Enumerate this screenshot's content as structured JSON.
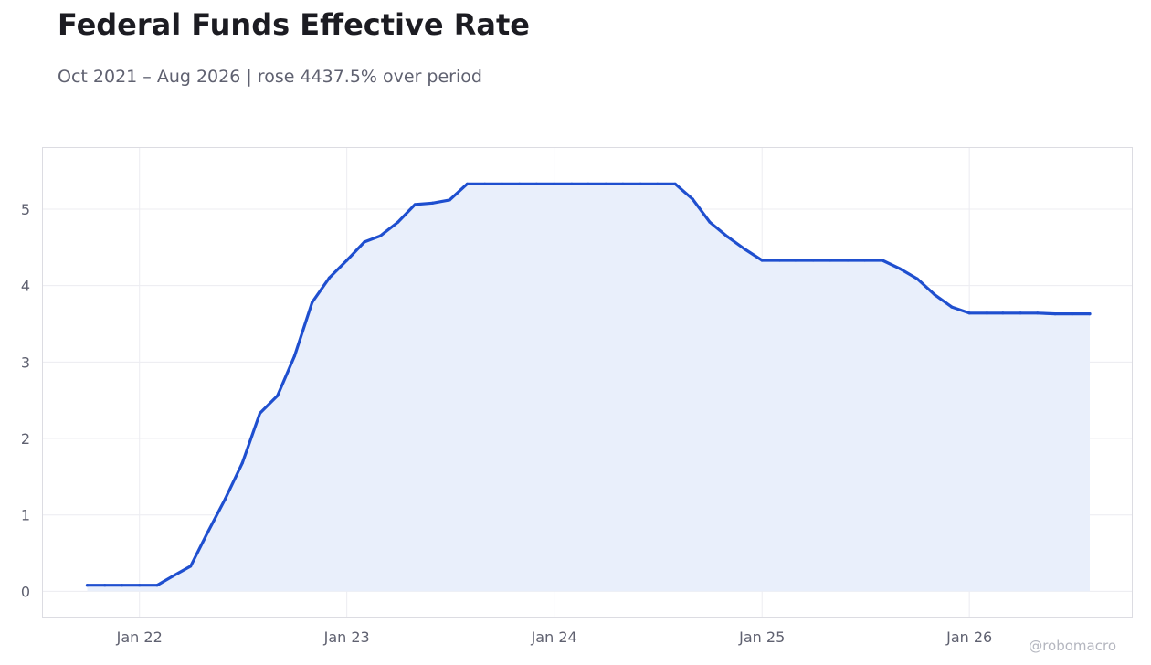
{
  "header": {
    "title": "Federal Funds Effective Rate",
    "subtitle": "Oct 2021 – Aug 2026 | rose 4437.5% over period"
  },
  "watermark": "@robomacro",
  "colors": {
    "line": "#1f4fcf",
    "area": "#e9effb",
    "grid": "#ececf1",
    "axis_text": "#5f6170"
  },
  "chart_data": {
    "type": "area",
    "title": "Federal Funds Effective Rate",
    "xlabel": "",
    "ylabel": "",
    "ylim": [
      -0.33,
      5.8
    ],
    "xlim": [
      "2021-07-15",
      "2026-10-14"
    ],
    "grid": true,
    "legend": "none",
    "x_ticks": [
      {
        "date": "2022-01-01",
        "label": "Jan 22"
      },
      {
        "date": "2023-01-01",
        "label": "Jan 23"
      },
      {
        "date": "2024-01-01",
        "label": "Jan 24"
      },
      {
        "date": "2025-01-01",
        "label": "Jan 25"
      },
      {
        "date": "2026-01-01",
        "label": "Jan 26"
      }
    ],
    "y_ticks": [
      0,
      1,
      2,
      3,
      4,
      5
    ],
    "series": [
      {
        "x": [
          "2021-10-01",
          "2021-11-01",
          "2021-12-01",
          "2022-01-01",
          "2022-02-01",
          "2022-03-01",
          "2022-04-01",
          "2022-05-01",
          "2022-06-01",
          "2022-07-01",
          "2022-08-01",
          "2022-09-01",
          "2022-10-01",
          "2022-11-01",
          "2022-12-01",
          "2023-01-01",
          "2023-02-01",
          "2023-03-01",
          "2023-04-01",
          "2023-05-01",
          "2023-06-01",
          "2023-07-01",
          "2023-08-01",
          "2023-09-01",
          "2023-10-01",
          "2023-11-01",
          "2023-12-01",
          "2024-01-01",
          "2024-02-01",
          "2024-03-01",
          "2024-04-01",
          "2024-05-01",
          "2024-06-01",
          "2024-07-01",
          "2024-08-01",
          "2024-09-01",
          "2024-10-01",
          "2024-11-01",
          "2024-12-01",
          "2025-01-01",
          "2025-02-01",
          "2025-03-01",
          "2025-04-01",
          "2025-05-01",
          "2025-06-01",
          "2025-07-01",
          "2025-08-01",
          "2025-09-01",
          "2025-10-01",
          "2025-11-01",
          "2025-12-01",
          "2026-01-01",
          "2026-02-01",
          "2026-03-01",
          "2026-04-01",
          "2026-05-01",
          "2026-06-01",
          "2026-07-01",
          "2026-08-01"
        ],
        "values": [
          0.08,
          0.08,
          0.08,
          0.08,
          0.08,
          0.2,
          0.33,
          0.77,
          1.21,
          1.68,
          2.33,
          2.56,
          3.08,
          3.78,
          4.1,
          4.33,
          4.57,
          4.65,
          4.83,
          5.06,
          5.08,
          5.12,
          5.33,
          5.33,
          5.33,
          5.33,
          5.33,
          5.33,
          5.33,
          5.33,
          5.33,
          5.33,
          5.33,
          5.33,
          5.33,
          5.13,
          4.83,
          4.64,
          4.48,
          4.33,
          4.33,
          4.33,
          4.33,
          4.33,
          4.33,
          4.33,
          4.33,
          4.22,
          4.09,
          3.88,
          3.72,
          3.64,
          3.64,
          3.64,
          3.64,
          3.64,
          3.63,
          3.63,
          3.63
        ]
      }
    ]
  }
}
